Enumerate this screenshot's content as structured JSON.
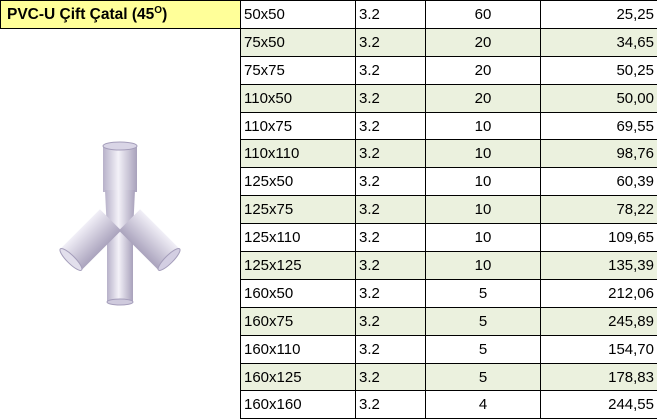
{
  "header": {
    "title": "PVC-U Çift Çatal (45",
    "superscript": "O",
    "close": ")"
  },
  "table": {
    "rows": [
      [
        "50x50",
        "3.2",
        "60",
        "25,25"
      ],
      [
        "75x50",
        "3.2",
        "20",
        "34,65"
      ],
      [
        "75x75",
        "3.2",
        "20",
        "50,25"
      ],
      [
        "110x50",
        "3.2",
        "20",
        "50,00"
      ],
      [
        "110x75",
        "3.2",
        "10",
        "69,55"
      ],
      [
        "110x110",
        "3.2",
        "10",
        "98,76"
      ],
      [
        "125x50",
        "3.2",
        "10",
        "60,39"
      ],
      [
        "125x75",
        "3.2",
        "10",
        "78,22"
      ],
      [
        "125x110",
        "3.2",
        "10",
        "109,65"
      ],
      [
        "125x125",
        "3.2",
        "10",
        "135,39"
      ],
      [
        "160x50",
        "3.2",
        "5",
        "212,06"
      ],
      [
        "160x75",
        "3.2",
        "5",
        "245,89"
      ],
      [
        "160x110",
        "3.2",
        "5",
        "154,70"
      ],
      [
        "160x125",
        "3.2",
        "5",
        "178,83"
      ],
      [
        "160x160",
        "3.2",
        "4",
        "244,55"
      ]
    ]
  }
}
